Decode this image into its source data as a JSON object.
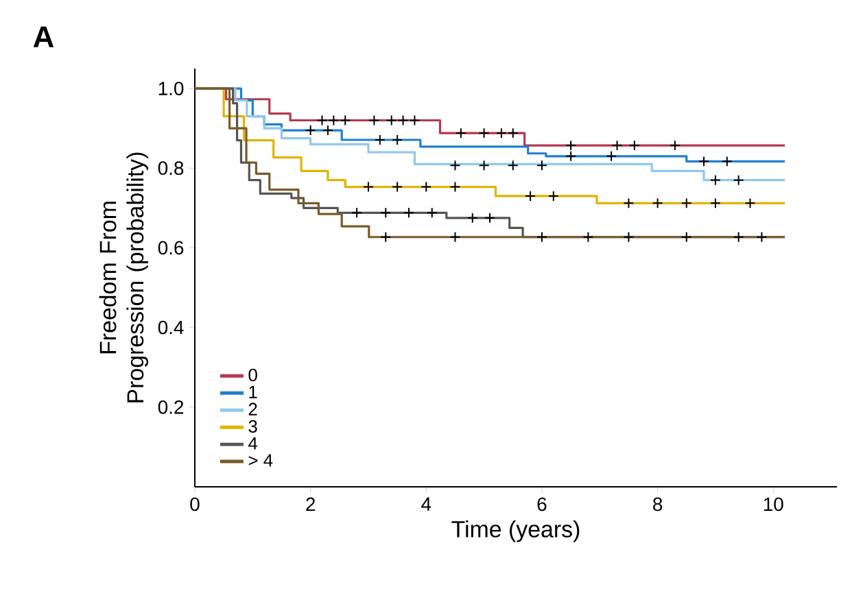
{
  "chart_data": {
    "type": "step",
    "title": "A",
    "xlabel": "Time (years)",
    "ylabel": "Freedom From Progression (probability)",
    "xlim": [
      0,
      11.1
    ],
    "ylim": [
      0,
      1.05
    ],
    "xticks": [
      0,
      2,
      4,
      6,
      8,
      10
    ],
    "yticks": [
      {
        "value": 0.2,
        "label": "0.2"
      },
      {
        "value": 0.4,
        "label": "0.4"
      },
      {
        "value": 0.6,
        "label": "0.6"
      },
      {
        "value": 0.8,
        "label": "0.8"
      },
      {
        "value": 1,
        "label": "1.0"
      }
    ],
    "legend": "bottom left",
    "grid": false,
    "series": [
      {
        "name": "0",
        "color": "#b5384f",
        "x": [
          0,
          0.54,
          1.29,
          1.65,
          4.24,
          5.7,
          10.2
        ],
        "values": [
          1,
          0.973,
          0.937,
          0.92,
          0.888,
          0.857,
          0.857
        ]
      },
      {
        "name": "1",
        "color": "#1f7fd0",
        "x": [
          0,
          0.8,
          1.0,
          1.2,
          1.5,
          2.54,
          3.9,
          5.76,
          6.07,
          8.5,
          10.2
        ],
        "values": [
          1,
          0.97,
          0.93,
          0.91,
          0.895,
          0.871,
          0.854,
          0.837,
          0.83,
          0.817,
          0.817
        ]
      },
      {
        "name": "2",
        "color": "#8fc8ea",
        "x": [
          0,
          0.7,
          0.9,
          1.2,
          1.5,
          2.0,
          3.0,
          3.8,
          7.9,
          8.8,
          10.2
        ],
        "values": [
          1,
          0.97,
          0.93,
          0.9,
          0.875,
          0.86,
          0.84,
          0.81,
          0.793,
          0.77,
          0.77
        ]
      },
      {
        "name": "3",
        "color": "#e0b400",
        "x": [
          0,
          0.5,
          0.85,
          1.36,
          1.84,
          2.3,
          2.6,
          5.2,
          6.95,
          10.2
        ],
        "values": [
          1,
          0.93,
          0.87,
          0.827,
          0.793,
          0.77,
          0.753,
          0.73,
          0.712,
          0.712
        ]
      },
      {
        "name": "4",
        "color": "#555555",
        "x": [
          0,
          0.66,
          0.73,
          0.8,
          0.94,
          1.13,
          1.67,
          1.88,
          2.47,
          4.35,
          5.44,
          5.67,
          10.2
        ],
        "values": [
          1,
          0.963,
          0.87,
          0.814,
          0.77,
          0.736,
          0.725,
          0.7,
          0.688,
          0.675,
          0.65,
          0.627,
          0.627
        ]
      },
      {
        "name": "> 4",
        "color": "#7a5a2a",
        "x": [
          0,
          0.6,
          0.89,
          1.06,
          1.29,
          1.79,
          2.14,
          2.54,
          3.01,
          10.2
        ],
        "values": [
          1,
          0.9,
          0.814,
          0.786,
          0.746,
          0.712,
          0.685,
          0.654,
          0.627,
          0.627
        ]
      },
      {
        "type": "scatter",
        "marker": "cross",
        "color": "#000000",
        "x": [
          2.2,
          2.4,
          2.6,
          3.1,
          3.4,
          3.6,
          3.8,
          4.6,
          5.0,
          5.3,
          5.5,
          6.5,
          7.3,
          7.6,
          8.3,
          2.0,
          2.3,
          3.2,
          3.5,
          6.5,
          7.2,
          8.8,
          9.2,
          4.5,
          5.0,
          5.5,
          6.0,
          9.0,
          9.4,
          3.0,
          3.5,
          4.0,
          4.5,
          5.8,
          6.2,
          7.5,
          8.0,
          8.5,
          9.0,
          9.6,
          2.8,
          3.3,
          3.7,
          4.1,
          4.8,
          5.1,
          3.3,
          4.5,
          6.0,
          6.8,
          7.5,
          8.5,
          9.4,
          9.8
        ],
        "values": [
          0.92,
          0.92,
          0.92,
          0.92,
          0.92,
          0.92,
          0.92,
          0.888,
          0.888,
          0.888,
          0.888,
          0.857,
          0.857,
          0.857,
          0.857,
          0.895,
          0.895,
          0.871,
          0.871,
          0.83,
          0.83,
          0.817,
          0.817,
          0.807,
          0.807,
          0.807,
          0.807,
          0.77,
          0.77,
          0.753,
          0.753,
          0.753,
          0.753,
          0.73,
          0.73,
          0.712,
          0.712,
          0.712,
          0.712,
          0.712,
          0.688,
          0.688,
          0.688,
          0.688,
          0.675,
          0.675,
          0.627,
          0.627,
          0.627,
          0.627,
          0.627,
          0.627,
          0.627,
          0.627
        ]
      }
    ]
  }
}
